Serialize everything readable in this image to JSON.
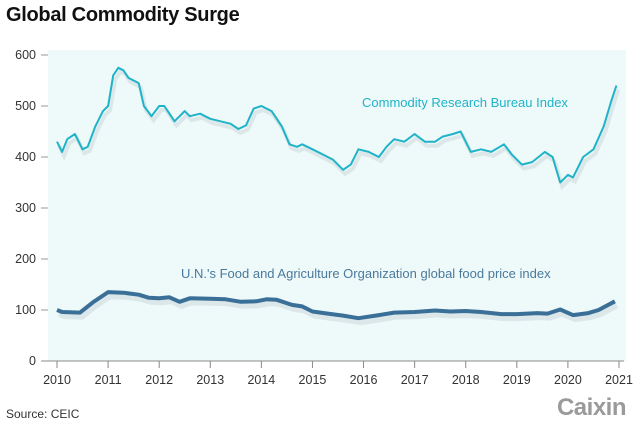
{
  "title": "Global Commodity Surge",
  "source": "Source: CEIC",
  "logo": "Caixin",
  "chart_data": {
    "type": "line",
    "title": "Global Commodity Surge",
    "xlabel": "",
    "ylabel": "",
    "xlim": [
      2010,
      2021
    ],
    "ylim": [
      0,
      600
    ],
    "x_ticks": [
      "2010",
      "2011",
      "2012",
      "2013",
      "2014",
      "2015",
      "2016",
      "2017",
      "2018",
      "2019",
      "2020",
      "2021"
    ],
    "y_ticks": [
      "0",
      "100",
      "200",
      "300",
      "400",
      "500",
      "600"
    ],
    "grid": false,
    "series": [
      {
        "name": "Commodity Research Bureau Index",
        "color": "#1fb3c8",
        "x": [
          2010.0,
          2010.1,
          2010.2,
          2010.35,
          2010.5,
          2010.6,
          2010.75,
          2010.9,
          2011.0,
          2011.1,
          2011.2,
          2011.3,
          2011.4,
          2011.6,
          2011.7,
          2011.85,
          2012.0,
          2012.1,
          2012.3,
          2012.5,
          2012.6,
          2012.8,
          2013.0,
          2013.2,
          2013.4,
          2013.55,
          2013.7,
          2013.85,
          2014.0,
          2014.2,
          2014.4,
          2014.55,
          2014.7,
          2014.8,
          2015.0,
          2015.2,
          2015.4,
          2015.6,
          2015.75,
          2015.9,
          2016.1,
          2016.3,
          2016.45,
          2016.6,
          2016.8,
          2017.0,
          2017.2,
          2017.4,
          2017.55,
          2017.75,
          2017.9,
          2018.0,
          2018.1,
          2018.3,
          2018.5,
          2018.75,
          2018.9,
          2019.1,
          2019.3,
          2019.55,
          2019.7,
          2019.85,
          2020.0,
          2020.1,
          2020.3,
          2020.5,
          2020.7,
          2020.85,
          2020.95
        ],
        "values": [
          430,
          410,
          435,
          445,
          415,
          420,
          460,
          490,
          500,
          560,
          575,
          570,
          555,
          545,
          500,
          480,
          500,
          500,
          470,
          490,
          480,
          485,
          475,
          470,
          465,
          455,
          462,
          495,
          500,
          490,
          460,
          425,
          420,
          425,
          415,
          405,
          395,
          375,
          385,
          415,
          410,
          400,
          420,
          435,
          430,
          445,
          430,
          430,
          440,
          445,
          450,
          430,
          410,
          415,
          410,
          425,
          405,
          385,
          390,
          410,
          400,
          350,
          365,
          360,
          400,
          415,
          460,
          510,
          540
        ]
      },
      {
        "name": "U.N.'s Food and Agriculture Organization global food price index",
        "color": "#3a6f98",
        "x": [
          2010.0,
          2010.1,
          2010.45,
          2010.7,
          2011.0,
          2011.3,
          2011.6,
          2011.8,
          2012.0,
          2012.2,
          2012.4,
          2012.6,
          2013.0,
          2013.3,
          2013.6,
          2013.9,
          2014.1,
          2014.3,
          2014.6,
          2014.8,
          2015.0,
          2015.3,
          2015.6,
          2015.9,
          2016.3,
          2016.6,
          2017.0,
          2017.4,
          2017.7,
          2018.0,
          2018.3,
          2018.7,
          2019.0,
          2019.4,
          2019.6,
          2019.85,
          2020.1,
          2020.4,
          2020.6,
          2020.92
        ],
        "values": [
          100,
          96,
          95,
          115,
          135,
          134,
          130,
          124,
          123,
          125,
          116,
          123,
          122,
          121,
          116,
          117,
          121,
          120,
          110,
          107,
          97,
          93,
          89,
          84,
          90,
          95,
          96,
          99,
          97,
          98,
          96,
          92,
          92,
          94,
          93,
          101,
          90,
          94,
          100,
          117
        ]
      }
    ],
    "annotations": [
      "Commodity Research Bureau Index",
      "U.N.'s Food and Agriculture Organization global food price index"
    ]
  }
}
